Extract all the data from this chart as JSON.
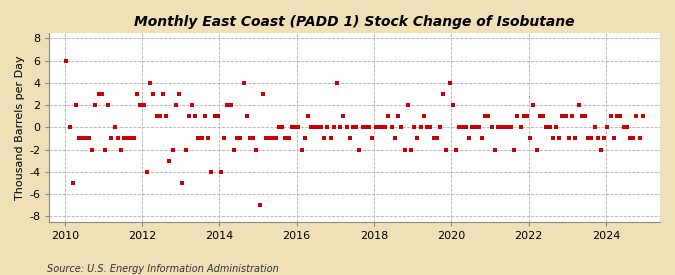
{
  "title": "Monthly East Coast (PADD 1) Stock Change of Isobutane",
  "ylabel": "Thousand Barrels per Day",
  "source": "Source: U.S. Energy Information Administration",
  "outer_bg_color": "#f0e0b8",
  "plot_bg_color": "#ffffff",
  "marker_color": "#cc0000",
  "marker_size": 9,
  "xlim": [
    2009.6,
    2025.4
  ],
  "ylim": [
    -8.5,
    8.5
  ],
  "yticks": [
    -8,
    -6,
    -4,
    -2,
    0,
    2,
    4,
    6,
    8
  ],
  "xticks": [
    2010,
    2012,
    2014,
    2016,
    2018,
    2020,
    2022,
    2024
  ],
  "title_fontsize": 10,
  "tick_fontsize": 8,
  "ylabel_fontsize": 8,
  "source_fontsize": 7,
  "data": {
    "2010-01": 6.0,
    "2010-02": 0.0,
    "2010-03": -5.0,
    "2010-04": 2.0,
    "2010-05": -1.0,
    "2010-06": -1.0,
    "2010-07": -1.0,
    "2010-08": -1.0,
    "2010-09": -2.0,
    "2010-10": 2.0,
    "2010-11": 3.0,
    "2010-12": 3.0,
    "2011-01": -2.0,
    "2011-02": 2.0,
    "2011-03": -1.0,
    "2011-04": 0.0,
    "2011-05": -1.0,
    "2011-06": -2.0,
    "2011-07": -1.0,
    "2011-08": -1.0,
    "2011-09": -1.0,
    "2011-10": -1.0,
    "2011-11": 3.0,
    "2011-12": 2.0,
    "2012-01": 2.0,
    "2012-02": -4.0,
    "2012-03": 4.0,
    "2012-04": 3.0,
    "2012-05": 1.0,
    "2012-06": 1.0,
    "2012-07": 3.0,
    "2012-08": 1.0,
    "2012-09": -3.0,
    "2012-10": -2.0,
    "2012-11": 2.0,
    "2012-12": 3.0,
    "2013-01": -5.0,
    "2013-02": -2.0,
    "2013-03": 1.0,
    "2013-04": 2.0,
    "2013-05": 1.0,
    "2013-06": -1.0,
    "2013-07": -1.0,
    "2013-08": 1.0,
    "2013-09": -1.0,
    "2013-10": -4.0,
    "2013-11": 1.0,
    "2013-12": 1.0,
    "2014-01": -4.0,
    "2014-02": -1.0,
    "2014-03": 2.0,
    "2014-04": 2.0,
    "2014-05": -2.0,
    "2014-06": -1.0,
    "2014-07": -1.0,
    "2014-08": 4.0,
    "2014-09": 1.0,
    "2014-10": -1.0,
    "2014-11": -1.0,
    "2014-12": -2.0,
    "2015-01": -7.0,
    "2015-02": 3.0,
    "2015-03": -1.0,
    "2015-04": -1.0,
    "2015-05": -1.0,
    "2015-06": -1.0,
    "2015-07": 0.0,
    "2015-08": 0.0,
    "2015-09": -1.0,
    "2015-10": -1.0,
    "2015-11": 0.0,
    "2015-12": 0.0,
    "2016-01": 0.0,
    "2016-02": -2.0,
    "2016-03": -1.0,
    "2016-04": 1.0,
    "2016-05": 0.0,
    "2016-06": 0.0,
    "2016-07": 0.0,
    "2016-08": 0.0,
    "2016-09": -1.0,
    "2016-10": 0.0,
    "2016-11": -1.0,
    "2016-12": 0.0,
    "2017-01": 4.0,
    "2017-02": 0.0,
    "2017-03": 1.0,
    "2017-04": 0.0,
    "2017-05": -1.0,
    "2017-06": 0.0,
    "2017-07": 0.0,
    "2017-08": -2.0,
    "2017-09": 0.0,
    "2017-10": 0.0,
    "2017-11": 0.0,
    "2017-12": -1.0,
    "2018-01": 0.0,
    "2018-02": 0.0,
    "2018-03": 0.0,
    "2018-04": 0.0,
    "2018-05": 1.0,
    "2018-06": 0.0,
    "2018-07": -1.0,
    "2018-08": 1.0,
    "2018-09": 0.0,
    "2018-10": -2.0,
    "2018-11": 2.0,
    "2018-12": -2.0,
    "2019-01": 0.0,
    "2019-02": -1.0,
    "2019-03": 0.0,
    "2019-04": 1.0,
    "2019-05": 0.0,
    "2019-06": 0.0,
    "2019-07": -1.0,
    "2019-08": -1.0,
    "2019-09": 0.0,
    "2019-10": 3.0,
    "2019-11": -2.0,
    "2019-12": 4.0,
    "2020-01": 2.0,
    "2020-02": -2.0,
    "2020-03": 0.0,
    "2020-04": 0.0,
    "2020-05": 0.0,
    "2020-06": -1.0,
    "2020-07": 0.0,
    "2020-08": 0.0,
    "2020-09": 0.0,
    "2020-10": -1.0,
    "2020-11": 1.0,
    "2020-12": 1.0,
    "2021-01": 0.0,
    "2021-02": -2.0,
    "2021-03": 0.0,
    "2021-04": 0.0,
    "2021-05": 0.0,
    "2021-06": 0.0,
    "2021-07": 0.0,
    "2021-08": -2.0,
    "2021-09": 1.0,
    "2021-10": 0.0,
    "2021-11": 1.0,
    "2021-12": 1.0,
    "2022-01": -1.0,
    "2022-02": 2.0,
    "2022-03": -2.0,
    "2022-04": 1.0,
    "2022-05": 1.0,
    "2022-06": 0.0,
    "2022-07": 0.0,
    "2022-08": -1.0,
    "2022-09": 0.0,
    "2022-10": -1.0,
    "2022-11": 1.0,
    "2022-12": 1.0,
    "2023-01": -1.0,
    "2023-02": 1.0,
    "2023-03": -1.0,
    "2023-04": 2.0,
    "2023-05": 1.0,
    "2023-06": 1.0,
    "2023-07": -1.0,
    "2023-08": -1.0,
    "2023-09": 0.0,
    "2023-10": -1.0,
    "2023-11": -2.0,
    "2023-12": -1.0,
    "2024-01": 0.0,
    "2024-02": 1.0,
    "2024-03": -1.0,
    "2024-04": 1.0,
    "2024-05": 1.0,
    "2024-06": 0.0,
    "2024-07": 0.0,
    "2024-08": -1.0,
    "2024-09": -1.0,
    "2024-10": 1.0,
    "2024-11": -1.0,
    "2024-12": 1.0
  }
}
